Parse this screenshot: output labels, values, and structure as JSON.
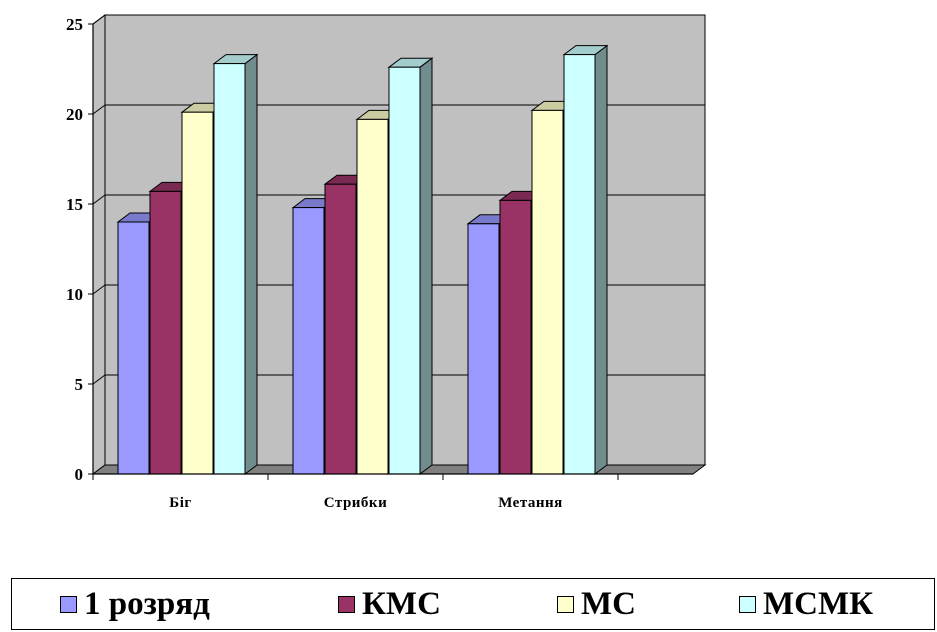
{
  "chart_data": {
    "type": "bar",
    "categories": [
      "Біг",
      "Стрибки",
      "Метання"
    ],
    "series": [
      {
        "name": "1 розряд",
        "color": "#9999ff",
        "values": [
          14.0,
          14.8,
          13.9
        ]
      },
      {
        "name": "КМС",
        "color": "#993366",
        "values": [
          15.7,
          16.1,
          15.2
        ]
      },
      {
        "name": "МС",
        "color": "#ffffcc",
        "values": [
          20.1,
          19.7,
          20.2
        ]
      },
      {
        "name": "МСМК",
        "color": "#ccffff",
        "values": [
          22.8,
          22.6,
          23.3
        ]
      }
    ],
    "ylim": [
      0,
      25
    ],
    "yticks": [
      "0",
      "5",
      "10",
      "15",
      "20",
      "25"
    ],
    "grid": true,
    "legend_position": "bottom",
    "wall_color": "#c0c0c0",
    "floor_color": "#808080"
  }
}
